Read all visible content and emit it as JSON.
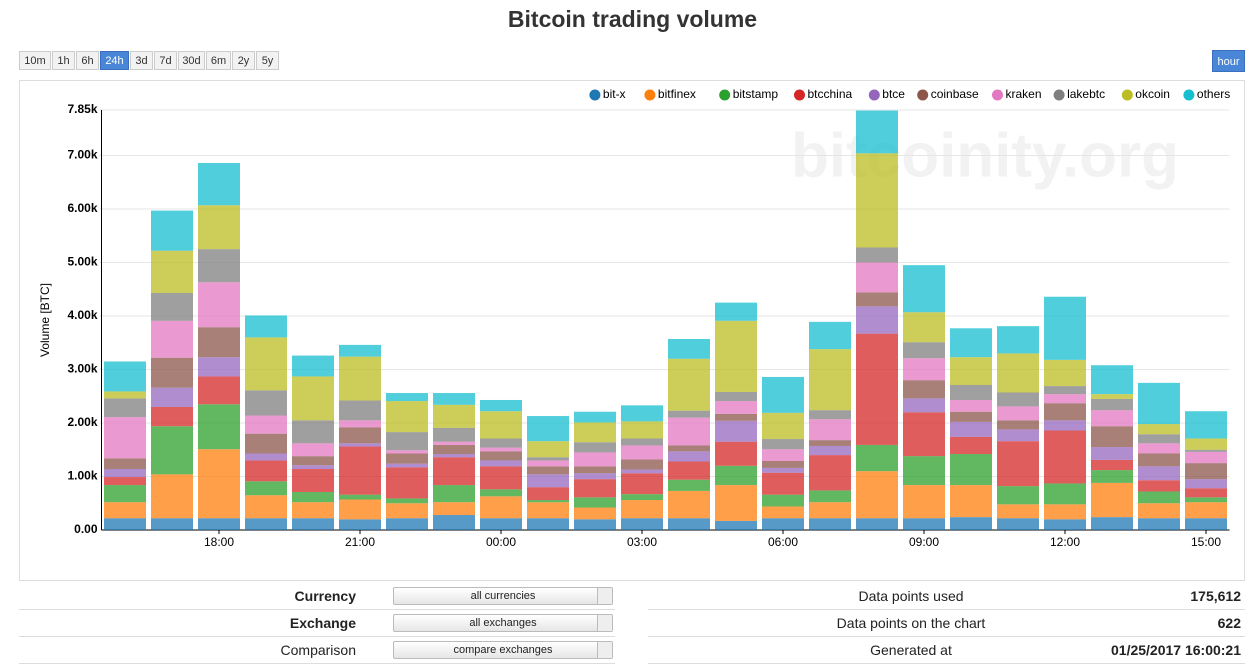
{
  "chart_data": {
    "type": "stacked_bar",
    "title": "Bitcoin trading volume",
    "y_label": "Volume [BTC]",
    "watermark": "bitcoinity.org",
    "grid": true,
    "legend": "top-right",
    "categories": [
      null,
      null,
      "18:00",
      null,
      null,
      "21:00",
      null,
      null,
      "00:00",
      null,
      null,
      "03:00",
      null,
      null,
      "06:00",
      null,
      null,
      "09:00",
      null,
      null,
      "12:00",
      null,
      null,
      "15:00"
    ],
    "ylim": [
      0,
      7850
    ],
    "yticks": [
      {
        "value": 0,
        "label": "0.00"
      },
      {
        "value": 1000,
        "label": "1.00k"
      },
      {
        "value": 2000,
        "label": "2.00k"
      },
      {
        "value": 3000,
        "label": "3.00k"
      },
      {
        "value": 4000,
        "label": "4.00k"
      },
      {
        "value": 5000,
        "label": "5.00k"
      },
      {
        "value": 6000,
        "label": "6.00k"
      },
      {
        "value": 7000,
        "label": "7.00k"
      },
      {
        "value": 7850,
        "label": "7.85k"
      }
    ],
    "series": [
      {
        "name": "bit-x",
        "color": "#1f77b4",
        "values": [
          220,
          220,
          220,
          220,
          220,
          200,
          220,
          280,
          220,
          220,
          200,
          220,
          220,
          170,
          220,
          220,
          220,
          220,
          240,
          220,
          200,
          240,
          220,
          220
        ]
      },
      {
        "name": "bitfinex",
        "color": "#ff7f0e",
        "values": [
          300,
          820,
          1290,
          430,
          300,
          370,
          280,
          240,
          410,
          300,
          220,
          340,
          510,
          670,
          220,
          300,
          880,
          620,
          600,
          260,
          280,
          640,
          280,
          300
        ]
      },
      {
        "name": "bitstamp",
        "color": "#2ca02c",
        "values": [
          320,
          900,
          840,
          260,
          190,
          90,
          90,
          320,
          130,
          40,
          190,
          110,
          210,
          360,
          220,
          220,
          490,
          540,
          580,
          340,
          390,
          240,
          220,
          90
        ]
      },
      {
        "name": "btcchina",
        "color": "#d62728",
        "values": [
          150,
          360,
          520,
          390,
          430,
          900,
          580,
          520,
          430,
          240,
          340,
          390,
          340,
          450,
          410,
          660,
          2080,
          820,
          320,
          840,
          990,
          190,
          210,
          170
        ]
      },
      {
        "name": "btce",
        "color": "#9467bd",
        "values": [
          150,
          360,
          360,
          130,
          70,
          60,
          70,
          60,
          110,
          240,
          110,
          70,
          190,
          390,
          90,
          170,
          510,
          260,
          280,
          220,
          190,
          240,
          260,
          170
        ]
      },
      {
        "name": "coinbase",
        "color": "#8c564b",
        "values": [
          200,
          560,
          560,
          370,
          170,
          300,
          190,
          170,
          170,
          150,
          130,
          190,
          110,
          130,
          130,
          110,
          260,
          340,
          190,
          170,
          320,
          390,
          240,
          300
        ]
      },
      {
        "name": "kraken",
        "color": "#e377c2",
        "values": [
          770,
          690,
          840,
          340,
          240,
          130,
          60,
          60,
          70,
          110,
          260,
          260,
          520,
          240,
          220,
          390,
          560,
          410,
          220,
          260,
          170,
          300,
          190,
          210
        ]
      },
      {
        "name": "lakebtc",
        "color": "#7f7f7f",
        "values": [
          350,
          520,
          620,
          470,
          430,
          370,
          340,
          260,
          170,
          60,
          190,
          130,
          130,
          170,
          190,
          170,
          280,
          300,
          280,
          260,
          150,
          210,
          170,
          40
        ]
      },
      {
        "name": "okcoin",
        "color": "#bcbd22",
        "values": [
          130,
          790,
          820,
          990,
          820,
          820,
          580,
          430,
          510,
          300,
          370,
          320,
          970,
          1330,
          490,
          1140,
          1760,
          560,
          520,
          730,
          490,
          90,
          190,
          210
        ]
      },
      {
        "name": "others",
        "color": "#17becf",
        "values": [
          560,
          750,
          790,
          410,
          390,
          220,
          150,
          220,
          210,
          470,
          200,
          300,
          370,
          340,
          670,
          510,
          800,
          880,
          540,
          510,
          1180,
          540,
          770,
          510
        ]
      }
    ]
  },
  "controls": {
    "ranges": [
      {
        "label": "10m"
      },
      {
        "label": "1h"
      },
      {
        "label": "6h"
      },
      {
        "label": "24h",
        "active": true
      },
      {
        "label": "3d"
      },
      {
        "label": "7d"
      },
      {
        "label": "30d"
      },
      {
        "label": "6m"
      },
      {
        "label": "2y"
      },
      {
        "label": "5y"
      }
    ],
    "interval": "hour"
  },
  "form": [
    {
      "label": "Currency",
      "value": "all currencies",
      "bold": true
    },
    {
      "label": "Exchange",
      "value": "all exchanges",
      "bold": true
    },
    {
      "label": "Comparison",
      "value": "compare exchanges",
      "bold": false
    }
  ],
  "stats": [
    {
      "label": "Data points used",
      "value": "175,612"
    },
    {
      "label": "Data points on the chart",
      "value": "622"
    },
    {
      "label": "Generated at",
      "value": "01/25/2017 16:00:21"
    }
  ]
}
